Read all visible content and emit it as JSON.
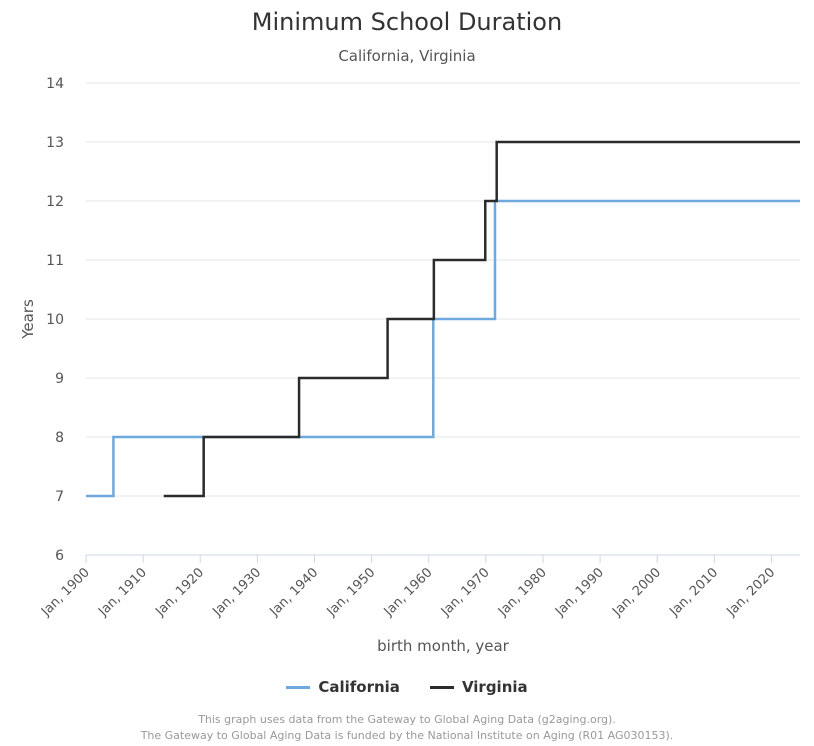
{
  "chart_data": {
    "type": "line",
    "step": true,
    "title": "Minimum School Duration",
    "subtitle": "California, Virginia",
    "xlabel": "birth month, year",
    "ylabel": "Years",
    "xlim": [
      1900,
      2025
    ],
    "ylim": [
      6,
      14
    ],
    "yticks": [
      6,
      7,
      8,
      9,
      10,
      11,
      12,
      13,
      14
    ],
    "xticks": [
      {
        "value": 1900,
        "label": "Jan, 1900"
      },
      {
        "value": 1910,
        "label": "Jan, 1910"
      },
      {
        "value": 1920,
        "label": "Jan, 1920"
      },
      {
        "value": 1930,
        "label": "Jan, 1930"
      },
      {
        "value": 1940,
        "label": "Jan, 1940"
      },
      {
        "value": 1950,
        "label": "Jan, 1950"
      },
      {
        "value": 1960,
        "label": "Jan, 1960"
      },
      {
        "value": 1970,
        "label": "Jan, 1970"
      },
      {
        "value": 1980,
        "label": "Jan, 1980"
      },
      {
        "value": 1990,
        "label": "Jan, 1990"
      },
      {
        "value": 2000,
        "label": "Jan, 2000"
      },
      {
        "value": 2010,
        "label": "Jan, 2010"
      },
      {
        "value": 2020,
        "label": "Jan, 2020"
      }
    ],
    "grid": true,
    "legend_position": "bottom",
    "series": [
      {
        "name": "California",
        "color": "#6fa8dc",
        "points": [
          [
            1900,
            7
          ],
          [
            1904.8,
            8
          ],
          [
            1960.8,
            10
          ],
          [
            1971.6,
            12
          ],
          [
            2025,
            12
          ]
        ]
      },
      {
        "name": "Virginia",
        "color": "#2b2b2b",
        "points": [
          [
            1913.6,
            7
          ],
          [
            1920.6,
            8
          ],
          [
            1937.3,
            9
          ],
          [
            1952.8,
            10
          ],
          [
            1960.9,
            11
          ],
          [
            1969.9,
            12
          ],
          [
            1971.9,
            13
          ],
          [
            2025,
            13
          ]
        ]
      }
    ]
  },
  "credits": {
    "line1": "This graph uses data from the Gateway to Global Aging Data (g2aging.org).",
    "line2": "The Gateway to Global Aging Data is funded by the National Institute on Aging (R01 AG030153)."
  }
}
